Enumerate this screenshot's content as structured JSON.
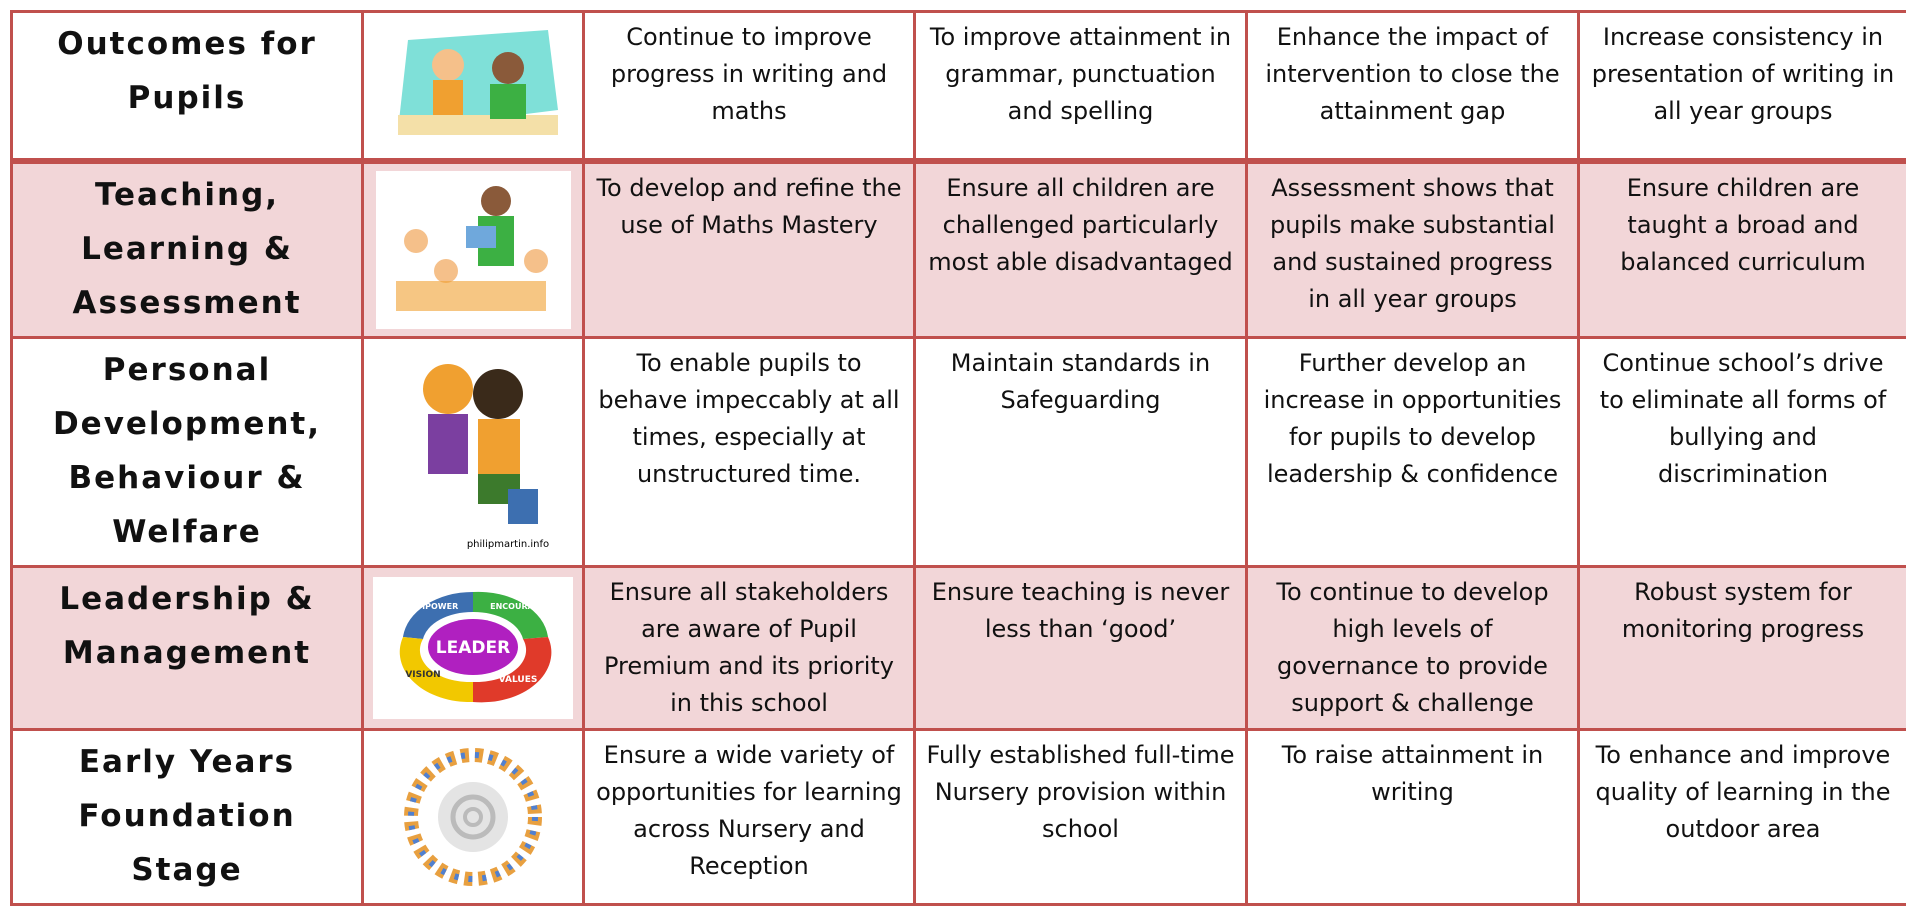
{
  "table": {
    "rows": [
      {
        "heading": "Outcomes for Pupils",
        "cells": [
          "Continue to improve progress in writing and maths",
          "To improve attainment in grammar, punctuation and spelling",
          "Enhance the impact of intervention to close the attainment gap",
          "Increase consistency in presentation of writing in all year groups"
        ]
      },
      {
        "heading": "Teaching, Learning & Assessment",
        "cells": [
          "To develop and refine the use of Maths Mastery",
          "Ensure all children are challenged particularly most able disadvantaged",
          "Assessment shows that pupils make substantial and sustained progress in all year groups",
          "Ensure children are taught a broad and balanced curriculum"
        ]
      },
      {
        "heading": "Personal Development, Behaviour & Welfare",
        "cells": [
          "To enable pupils to behave impeccably at all times, especially at unstructured time.",
          "Maintain standards in Safeguarding",
          "Further develop an increase in opportunities for pupils to develop leadership & confidence",
          "Continue school’s drive to eliminate all forms of bullying and discrimination"
        ]
      },
      {
        "heading": "Leadership & Management",
        "cells": [
          "Ensure all stakeholders are aware of Pupil Premium and its priority in this school",
          "Ensure teaching is never less than ‘good’",
          "To continue to develop high levels of governance to provide support & challenge",
          "Robust system for monitoring progress"
        ]
      },
      {
        "heading": "Early Years Foundation Stage",
        "cells": [
          "Ensure a wide variety of opportunities for learning across Nursery and Reception",
          "Fully established full-time Nursery provision within school",
          "To raise attainment in writing",
          "To enhance and improve quality of learning in the outdoor area"
        ]
      }
    ]
  },
  "image_labels": {
    "credit": "philipmartin.info",
    "leader": "LEADER",
    "empower": "EMPOWER",
    "encourage": "ENCOURAGE",
    "values": "VALUES",
    "vision": "VISION"
  }
}
